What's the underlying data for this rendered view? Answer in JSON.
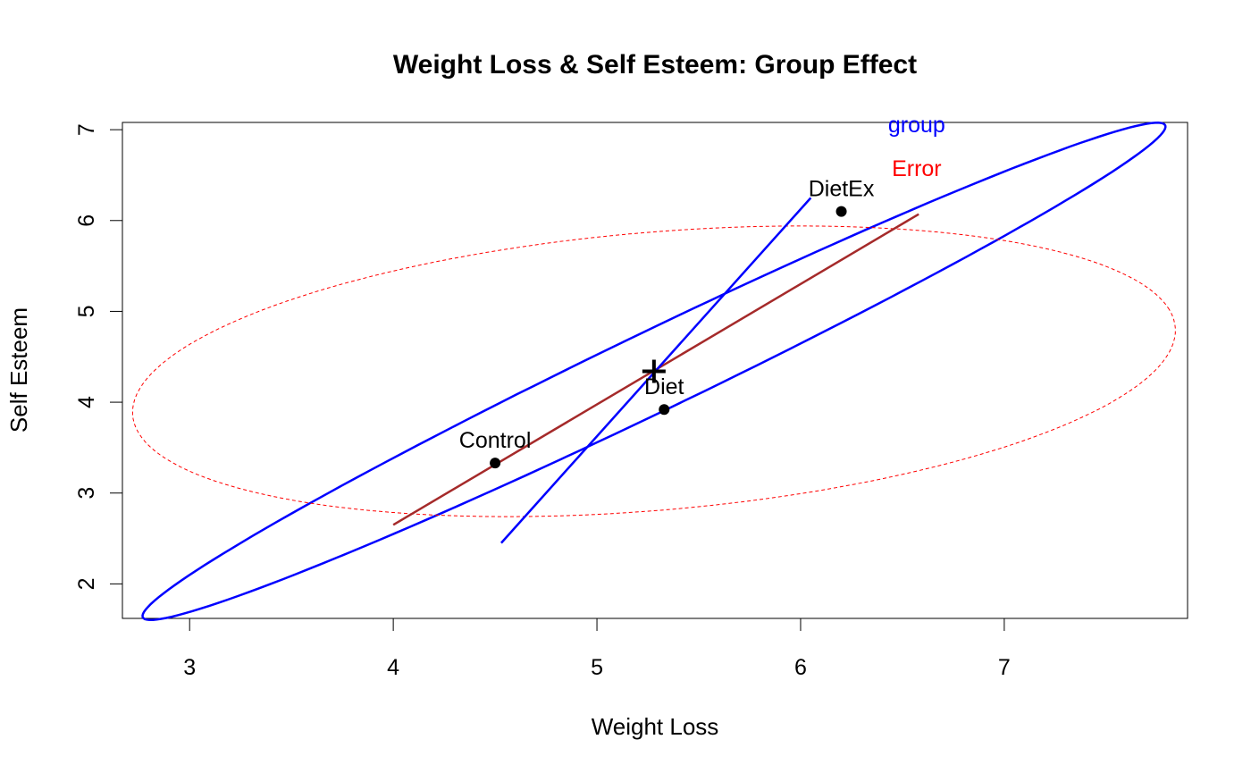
{
  "chart_data": {
    "type": "scatter",
    "title": "Weight Loss & Self Esteem: Group Effect",
    "xlabel": "Weight Loss",
    "ylabel": "Self Esteem",
    "xlim": [
      2.67,
      7.9
    ],
    "ylim": [
      1.62,
      7.08
    ],
    "xticks": [
      3,
      4,
      5,
      6,
      7
    ],
    "yticks": [
      2,
      3,
      4,
      5,
      6,
      7
    ],
    "grand_mean": {
      "x": 5.28,
      "y": 4.34
    },
    "points": [
      {
        "label": "Control",
        "x": 4.5,
        "y": 3.33
      },
      {
        "label": "Diet",
        "x": 5.33,
        "y": 3.92
      },
      {
        "label": "DietEx",
        "x": 6.2,
        "y": 6.1
      }
    ],
    "ellipses": [
      {
        "label": "group",
        "color": "#0000ff",
        "style": "solid",
        "center": [
          5.28,
          4.34
        ],
        "semi_major": 3.7,
        "semi_minor": 0.33,
        "angle_deg": 47.5
      },
      {
        "label": "Error",
        "color": "#ff0000",
        "style": "dashed",
        "center": [
          5.28,
          4.34
        ],
        "semi_major": 2.62,
        "semi_minor": 1.5,
        "angle_deg": 15
      }
    ],
    "hypothesis_lines": [
      {
        "color": "#a52a2a",
        "points": [
          [
            4.0,
            2.65
          ],
          [
            6.58,
            6.07
          ]
        ]
      },
      {
        "color": "#0000ff",
        "points": [
          [
            4.53,
            2.45
          ],
          [
            6.05,
            6.25
          ]
        ]
      }
    ]
  }
}
